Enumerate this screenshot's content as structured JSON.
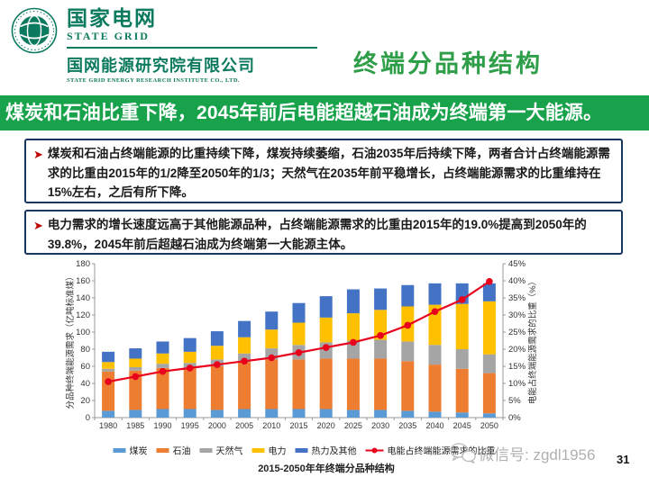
{
  "header": {
    "brand": {
      "name_cn": "国家电网",
      "name_en": "STATE GRID",
      "institute_cn": "国网能源研究院有限公司",
      "institute_en": "STATE GRID ENERGY RESEARCH INSTITUTE CO., LTD."
    },
    "page_title": "终端分品种结构"
  },
  "banner": {
    "text": "煤炭和石油比重下降，2045年前后电能超越石油成为终端第一大能源。",
    "background_color": "#18a24b"
  },
  "bullets": [
    {
      "text": "煤炭和石油占终端能源的比重持续下降，煤炭持续萎缩，石油2035年后持续下降，两者合计占终端能源需求的比重由2015年的1/2降至2050年的1/3；天然气在2035年前平稳增长，占终端能源需求的比重维持在15%左右，之后有所下降。"
    },
    {
      "text": "电力需求的增长速度远高于其他能源品种，占终端能源需求的比重由2015年的19.0%提高到2050年的39.8%，2045年前后超越石油成为终端第一大能源主体。"
    }
  ],
  "chart_data": {
    "type": "bar",
    "subtype": "stacked-columns-with-line",
    "title": "2015-2050年年终端分品种结构",
    "categories": [
      "1980",
      "1985",
      "1990",
      "1995",
      "2000",
      "2005",
      "2010",
      "2015",
      "2020",
      "2025",
      "2030",
      "2035",
      "2040",
      "2045",
      "2050"
    ],
    "series": [
      {
        "name": "煤炭",
        "color": "#5B9BD5",
        "values": [
          8,
          9,
          10,
          10,
          9,
          10,
          10,
          10,
          10,
          9,
          9,
          8,
          7,
          6,
          5
        ]
      },
      {
        "name": "石油",
        "color": "#ED7D31",
        "values": [
          46,
          46,
          48,
          48,
          51,
          55,
          58,
          58,
          59,
          60,
          60,
          58,
          55,
          51,
          47
        ]
      },
      {
        "name": "天然气",
        "color": "#A5A5A5",
        "values": [
          3,
          4,
          5,
          6,
          8,
          10,
          13,
          17,
          19,
          21,
          22,
          23,
          23,
          23,
          22
        ]
      },
      {
        "name": "电力",
        "color": "#FFC000",
        "values": [
          8,
          10,
          12,
          13,
          16,
          19,
          22,
          26,
          29,
          32,
          35,
          41,
          47,
          53,
          62
        ]
      },
      {
        "name": "热力及其他",
        "color": "#4472C4",
        "values": [
          12,
          12,
          14,
          16,
          17,
          19,
          21,
          23,
          25,
          28,
          25,
          25,
          25,
          24,
          21
        ]
      }
    ],
    "line_series": {
      "name": "电能占终端能源需求的比重",
      "color": "#E8001C",
      "axis": "right",
      "values": [
        10.5,
        12,
        13.5,
        14.5,
        15.5,
        16.5,
        17.5,
        19.0,
        20.5,
        22,
        24,
        27,
        31,
        34.5,
        39.8
      ]
    },
    "ylabel_left": "分品种终端能源需求（亿吨标准煤）",
    "ylabel_right": "电能占终端能源需求的比重（%）",
    "ylim_left": [
      0,
      180
    ],
    "ytick_left": 20,
    "ylim_right": [
      0,
      45
    ],
    "ytick_right": 5,
    "grid": false,
    "legend_position": "bottom"
  },
  "footer": {
    "watermark_label": "微信号: zgdl1956",
    "page_number": "31"
  }
}
